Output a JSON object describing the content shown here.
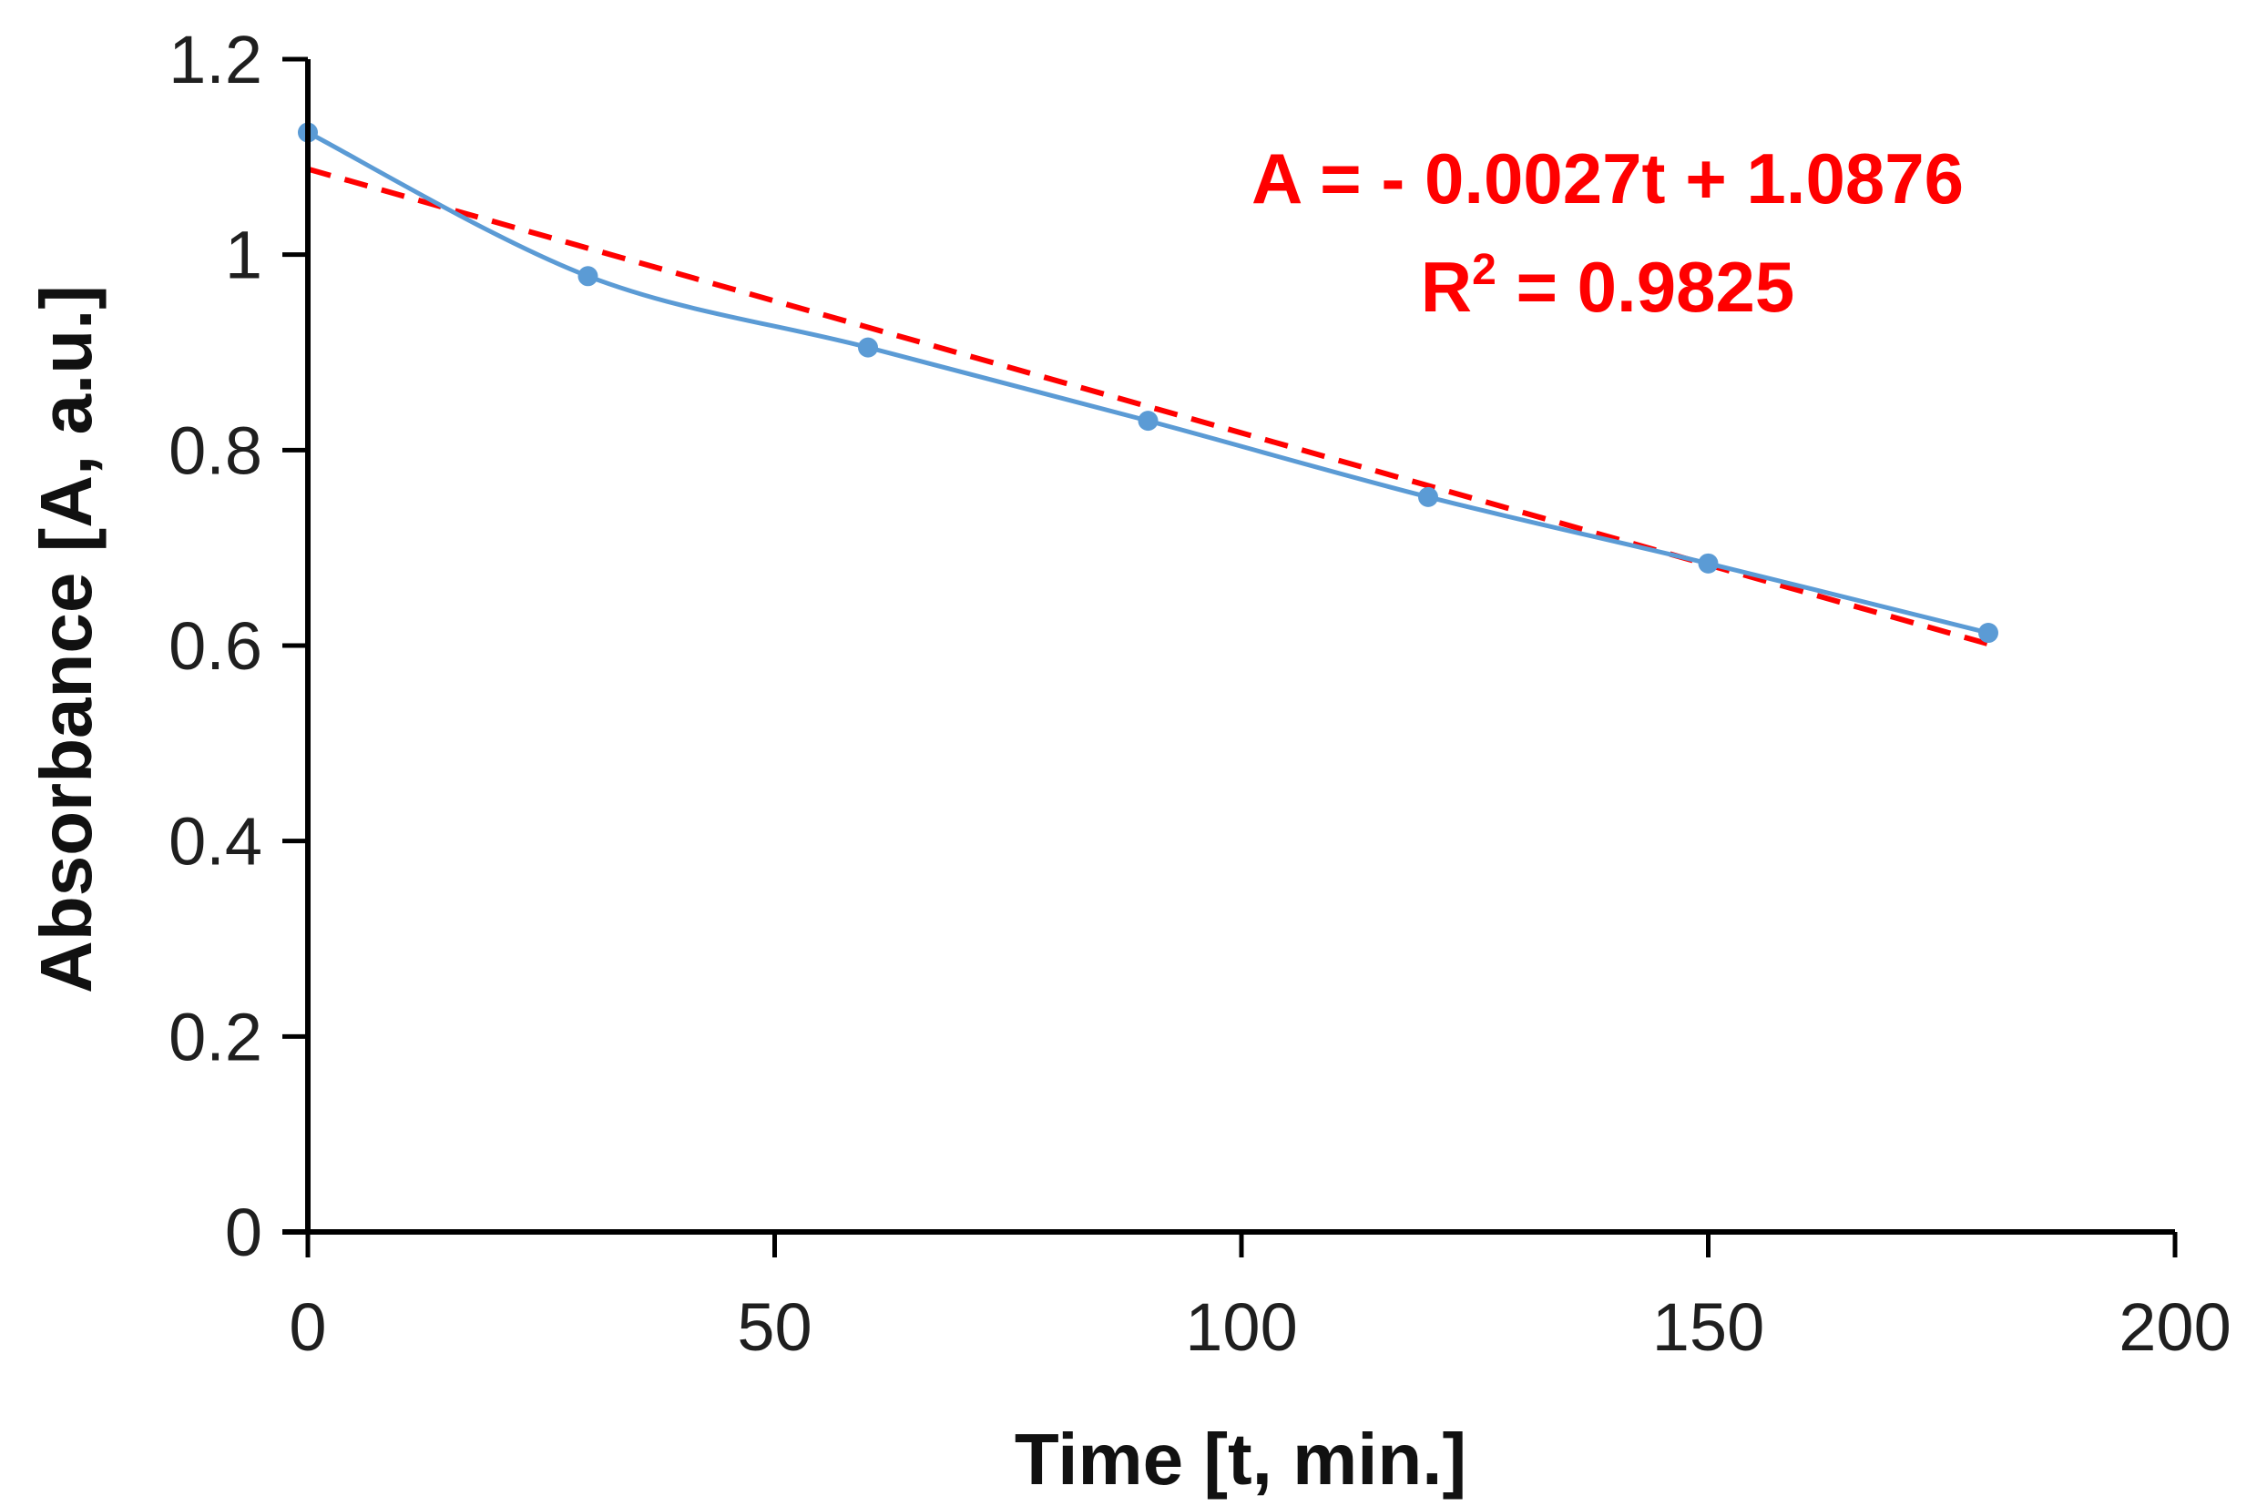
{
  "chart_data": {
    "type": "line",
    "title": "",
    "xlabel": "Time [t, min.]",
    "ylabel": "Absorbance [A, a.u.]",
    "xlim": [
      0,
      200
    ],
    "ylim": [
      0,
      1.2
    ],
    "xticks": [
      "0",
      "50",
      "100",
      "150",
      "200"
    ],
    "yticks": [
      "0",
      "0.2",
      "0.4",
      "0.6",
      "0.8",
      "1",
      "1.2"
    ],
    "grid": false,
    "legend": "none",
    "series": [
      {
        "x": [
          0,
          30,
          60,
          90,
          120,
          150,
          180
        ],
        "values": [
          1.125,
          0.978,
          0.905,
          0.83,
          0.752,
          0.684,
          0.613
        ],
        "color": "#5b9bd5",
        "style": "smooth line with markers"
      }
    ],
    "trendline": {
      "type": "linear",
      "slope": -0.0027,
      "intercept": 1.0876,
      "x_range": [
        0,
        180
      ],
      "color": "#ff0000",
      "style": "dashed"
    },
    "annotations": {
      "equation": "A = - 0.0027t + 1.0876",
      "r2_prefix": "R",
      "r2_superscript": "2",
      "r2_value": " = 0.9825",
      "color": "#ff0000"
    }
  }
}
